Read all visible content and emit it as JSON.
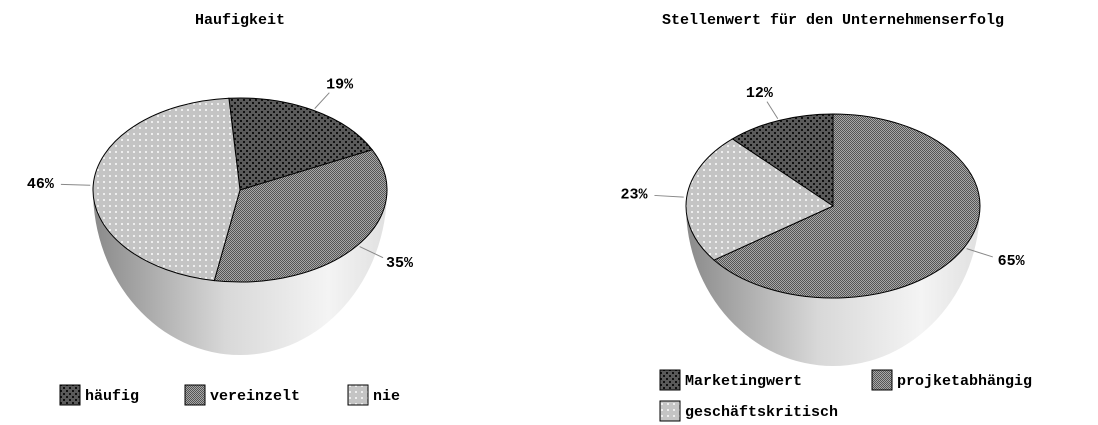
{
  "chart_data": [
    {
      "type": "pie",
      "title": "Haufigkeit",
      "categories": [
        "häufig",
        "vereinzelt",
        "nie"
      ],
      "values": [
        19,
        35,
        46
      ],
      "value_labels": [
        "19%",
        "35%",
        "46%"
      ],
      "colors": [
        "#5a5a5a",
        "#a8a8a8",
        "#c4c4c4"
      ]
    },
    {
      "type": "pie",
      "title": "Stellenwert für den Unternehmenserfolg",
      "categories": [
        "Marketingwert",
        "projketabhängig",
        "geschäftskritisch"
      ],
      "values": [
        12,
        65,
        23
      ],
      "value_labels": [
        "12%",
        "65%",
        "23%"
      ],
      "colors": [
        "#5a5a5a",
        "#a8a8a8",
        "#c4c4c4"
      ]
    }
  ]
}
